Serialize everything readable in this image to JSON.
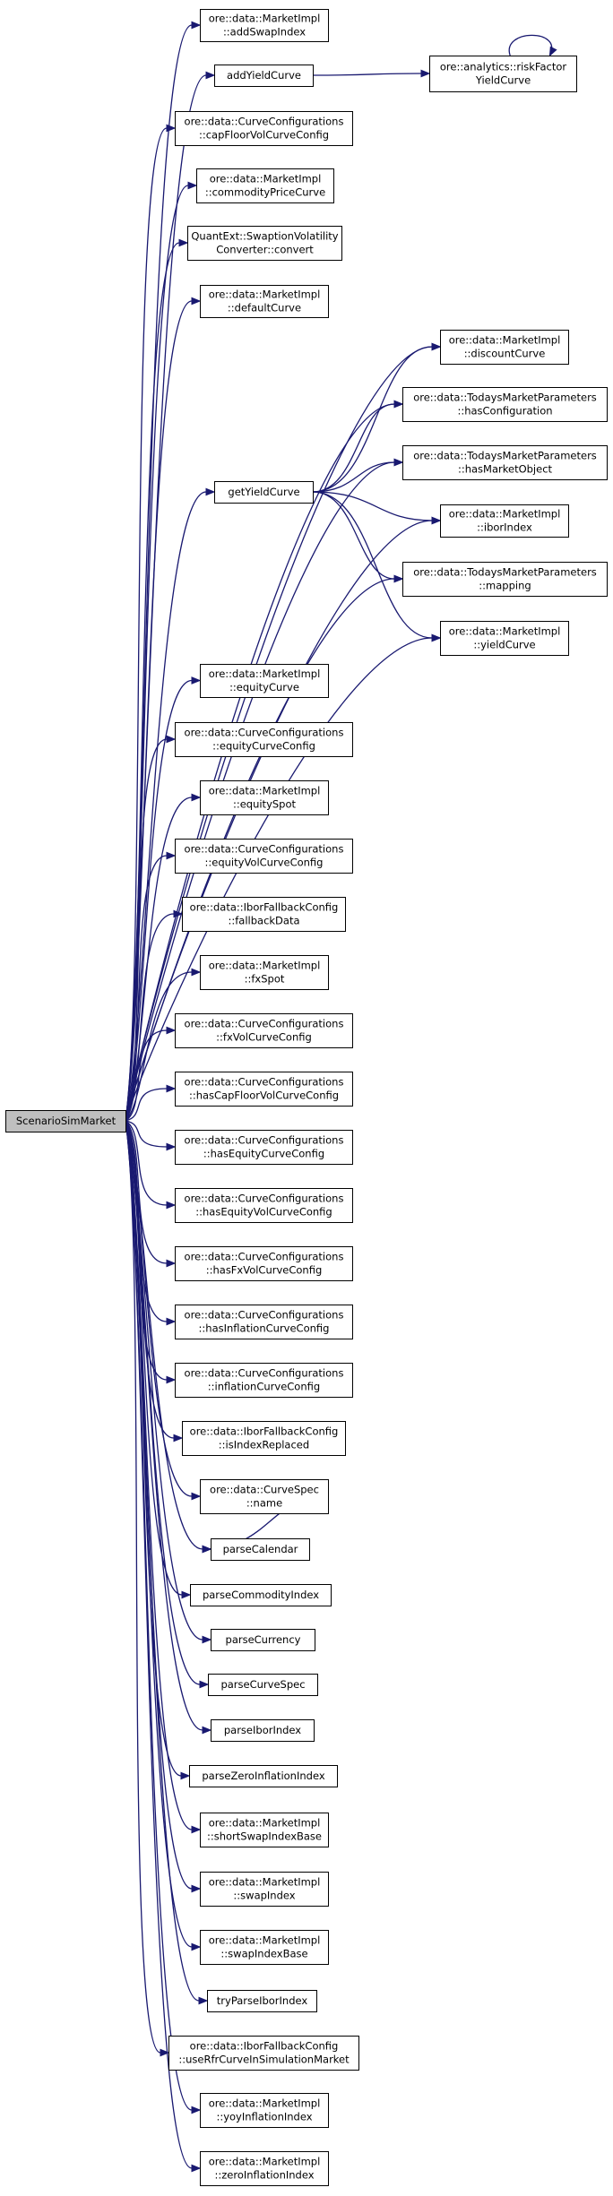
{
  "graph": {
    "colors": {
      "edge": "#191970",
      "box_border": "#000000",
      "root_fill": "#bfbfbf",
      "node_fill": "#ffffff"
    },
    "nodes": [
      {
        "id": "root",
        "lines": [
          "ScenarioSimMarket"
        ],
        "root": true,
        "interactable": false
      },
      {
        "id": "addSwapIndex",
        "lines": [
          "ore::data::MarketImpl",
          "::addSwapIndex"
        ]
      },
      {
        "id": "addYieldCurve",
        "lines": [
          "addYieldCurve"
        ]
      },
      {
        "id": "riskFactorYieldCurve",
        "lines": [
          "ore::analytics::riskFactor",
          "YieldCurve"
        ]
      },
      {
        "id": "capFloorVolCurveConfig",
        "lines": [
          "ore::data::CurveConfigurations",
          "::capFloorVolCurveConfig"
        ]
      },
      {
        "id": "commodityPriceCurve",
        "lines": [
          "ore::data::MarketImpl",
          "::commodityPriceCurve"
        ]
      },
      {
        "id": "convert",
        "lines": [
          "QuantExt::SwaptionVolatility",
          "Converter::convert"
        ]
      },
      {
        "id": "defaultCurve",
        "lines": [
          "ore::data::MarketImpl",
          "::defaultCurve"
        ]
      },
      {
        "id": "discountCurve",
        "lines": [
          "ore::data::MarketImpl",
          "::discountCurve"
        ]
      },
      {
        "id": "hasConfiguration",
        "lines": [
          "ore::data::TodaysMarketParameters",
          "::hasConfiguration"
        ]
      },
      {
        "id": "hasMarketObject",
        "lines": [
          "ore::data::TodaysMarketParameters",
          "::hasMarketObject"
        ]
      },
      {
        "id": "getYieldCurve",
        "lines": [
          "getYieldCurve"
        ]
      },
      {
        "id": "iborIndex",
        "lines": [
          "ore::data::MarketImpl",
          "::iborIndex"
        ]
      },
      {
        "id": "mapping",
        "lines": [
          "ore::data::TodaysMarketParameters",
          "::mapping"
        ]
      },
      {
        "id": "yieldCurve",
        "lines": [
          "ore::data::MarketImpl",
          "::yieldCurve"
        ]
      },
      {
        "id": "equityCurve",
        "lines": [
          "ore::data::MarketImpl",
          "::equityCurve"
        ]
      },
      {
        "id": "equityCurveConfig",
        "lines": [
          "ore::data::CurveConfigurations",
          "::equityCurveConfig"
        ]
      },
      {
        "id": "equitySpot",
        "lines": [
          "ore::data::MarketImpl",
          "::equitySpot"
        ]
      },
      {
        "id": "equityVolCurveConfig",
        "lines": [
          "ore::data::CurveConfigurations",
          "::equityVolCurveConfig"
        ]
      },
      {
        "id": "fallbackData",
        "lines": [
          "ore::data::IborFallbackConfig",
          "::fallbackData"
        ]
      },
      {
        "id": "fxSpot",
        "lines": [
          "ore::data::MarketImpl",
          "::fxSpot"
        ]
      },
      {
        "id": "fxVolCurveConfig",
        "lines": [
          "ore::data::CurveConfigurations",
          "::fxVolCurveConfig"
        ]
      },
      {
        "id": "hasCapFloorVolCurveConfig",
        "lines": [
          "ore::data::CurveConfigurations",
          "::hasCapFloorVolCurveConfig"
        ]
      },
      {
        "id": "hasEquityCurveConfig",
        "lines": [
          "ore::data::CurveConfigurations",
          "::hasEquityCurveConfig"
        ]
      },
      {
        "id": "hasEquityVolCurveConfig",
        "lines": [
          "ore::data::CurveConfigurations",
          "::hasEquityVolCurveConfig"
        ]
      },
      {
        "id": "hasFxVolCurveConfig",
        "lines": [
          "ore::data::CurveConfigurations",
          "::hasFxVolCurveConfig"
        ]
      },
      {
        "id": "hasInflationCurveConfig",
        "lines": [
          "ore::data::CurveConfigurations",
          "::hasInflationCurveConfig"
        ]
      },
      {
        "id": "inflationCurveConfig",
        "lines": [
          "ore::data::CurveConfigurations",
          "::inflationCurveConfig"
        ]
      },
      {
        "id": "isIndexReplaced",
        "lines": [
          "ore::data::IborFallbackConfig",
          "::isIndexReplaced"
        ]
      },
      {
        "id": "name",
        "lines": [
          "ore::data::CurveSpec",
          "::name"
        ]
      },
      {
        "id": "parseCalendar",
        "lines": [
          "parseCalendar"
        ]
      },
      {
        "id": "parseCommodityIndex",
        "lines": [
          "parseCommodityIndex"
        ]
      },
      {
        "id": "parseCurrency",
        "lines": [
          "parseCurrency"
        ]
      },
      {
        "id": "parseCurveSpec",
        "lines": [
          "parseCurveSpec"
        ]
      },
      {
        "id": "parseIborIndex",
        "lines": [
          "parseIborIndex"
        ]
      },
      {
        "id": "parseZeroInflationIndex",
        "lines": [
          "parseZeroInflationIndex"
        ]
      },
      {
        "id": "shortSwapIndexBase",
        "lines": [
          "ore::data::MarketImpl",
          "::shortSwapIndexBase"
        ]
      },
      {
        "id": "swapIndex",
        "lines": [
          "ore::data::MarketImpl",
          "::swapIndex"
        ]
      },
      {
        "id": "swapIndexBase",
        "lines": [
          "ore::data::MarketImpl",
          "::swapIndexBase"
        ]
      },
      {
        "id": "tryParseIborIndex",
        "lines": [
          "tryParseIborIndex"
        ]
      },
      {
        "id": "useRfrCurveInSimulationMarket",
        "lines": [
          "ore::data::IborFallbackConfig",
          "::useRfrCurveInSimulationMarket"
        ]
      },
      {
        "id": "yoyInflationIndex",
        "lines": [
          "ore::data::MarketImpl",
          "::yoyInflationIndex"
        ]
      },
      {
        "id": "zeroInflationIndex",
        "lines": [
          "ore::data::MarketImpl",
          "::zeroInflationIndex"
        ]
      }
    ],
    "edges": [
      [
        "root",
        "addSwapIndex"
      ],
      [
        "root",
        "addYieldCurve"
      ],
      [
        "root",
        "capFloorVolCurveConfig"
      ],
      [
        "root",
        "commodityPriceCurve"
      ],
      [
        "root",
        "convert"
      ],
      [
        "root",
        "defaultCurve"
      ],
      [
        "root",
        "discountCurve"
      ],
      [
        "root",
        "hasConfiguration"
      ],
      [
        "root",
        "hasMarketObject"
      ],
      [
        "root",
        "getYieldCurve"
      ],
      [
        "root",
        "iborIndex"
      ],
      [
        "root",
        "mapping"
      ],
      [
        "root",
        "yieldCurve"
      ],
      [
        "root",
        "equityCurve"
      ],
      [
        "root",
        "equityCurveConfig"
      ],
      [
        "root",
        "equitySpot"
      ],
      [
        "root",
        "equityVolCurveConfig"
      ],
      [
        "root",
        "fallbackData"
      ],
      [
        "root",
        "fxSpot"
      ],
      [
        "root",
        "fxVolCurveConfig"
      ],
      [
        "root",
        "hasCapFloorVolCurveConfig"
      ],
      [
        "root",
        "hasEquityCurveConfig"
      ],
      [
        "root",
        "hasEquityVolCurveConfig"
      ],
      [
        "root",
        "hasFxVolCurveConfig"
      ],
      [
        "root",
        "hasInflationCurveConfig"
      ],
      [
        "root",
        "inflationCurveConfig"
      ],
      [
        "root",
        "isIndexReplaced"
      ],
      [
        "root",
        "name"
      ],
      [
        "root",
        "parseCalendar"
      ],
      [
        "root",
        "parseCommodityIndex"
      ],
      [
        "root",
        "parseCurrency"
      ],
      [
        "root",
        "parseCurveSpec"
      ],
      [
        "root",
        "parseIborIndex"
      ],
      [
        "root",
        "parseZeroInflationIndex"
      ],
      [
        "root",
        "shortSwapIndexBase"
      ],
      [
        "root",
        "swapIndex"
      ],
      [
        "root",
        "swapIndexBase"
      ],
      [
        "root",
        "tryParseIborIndex"
      ],
      [
        "root",
        "useRfrCurveInSimulationMarket"
      ],
      [
        "root",
        "yoyInflationIndex"
      ],
      [
        "root",
        "zeroInflationIndex"
      ],
      [
        "addYieldCurve",
        "riskFactorYieldCurve"
      ],
      [
        "riskFactorYieldCurve",
        "riskFactorYieldCurve"
      ],
      [
        "getYieldCurve",
        "discountCurve"
      ],
      [
        "getYieldCurve",
        "hasConfiguration"
      ],
      [
        "getYieldCurve",
        "hasMarketObject"
      ],
      [
        "getYieldCurve",
        "iborIndex"
      ],
      [
        "getYieldCurve",
        "mapping"
      ],
      [
        "getYieldCurve",
        "yieldCurve"
      ],
      [
        "name",
        "parseCalendar"
      ]
    ]
  }
}
